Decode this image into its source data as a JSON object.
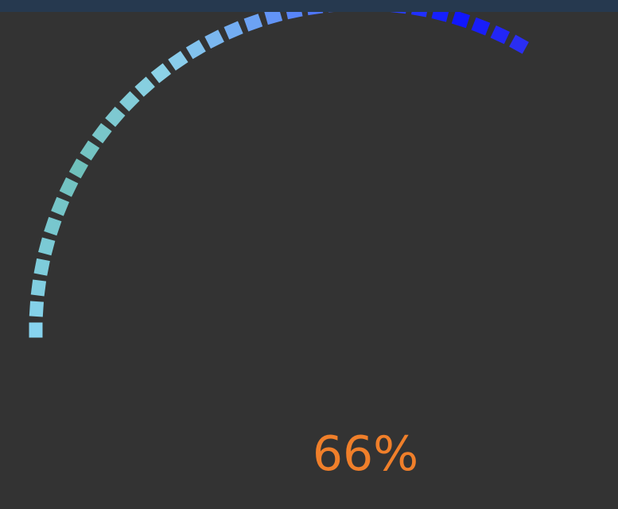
{
  "window": {
    "header_color": "#26394f",
    "background_color": "#333333"
  },
  "gauge": {
    "value_percent": 66,
    "label": "66%",
    "label_color": "#f07f2a",
    "segment_count": 33,
    "gradient_stops": [
      {
        "at": 0.0,
        "color": "#87d3ee"
      },
      {
        "at": 0.25,
        "color": "#6fc0bb"
      },
      {
        "at": 0.45,
        "color": "#8ed3ea"
      },
      {
        "at": 0.6,
        "color": "#6aa0f4"
      },
      {
        "at": 0.75,
        "color": "#3b59ff"
      },
      {
        "at": 0.9,
        "color": "#0f15ff"
      },
      {
        "at": 1.0,
        "color": "#2a2ef2"
      }
    ]
  }
}
